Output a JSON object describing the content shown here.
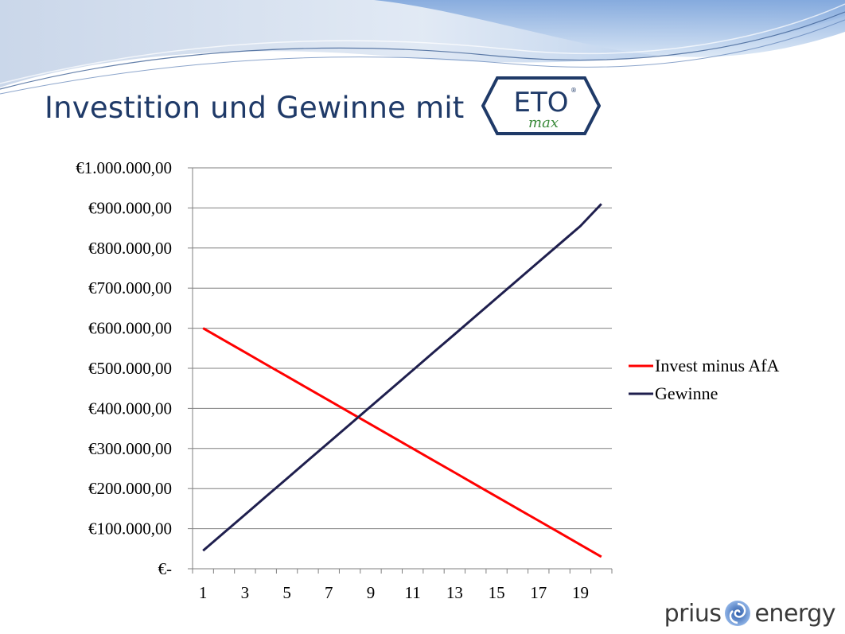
{
  "slide": {
    "title": "Investition und Gewinne mit",
    "logo": {
      "main_text": "ETO",
      "sub_text": "max",
      "registered": "®"
    },
    "brand": {
      "left": "prius",
      "right": "energy"
    }
  },
  "colors": {
    "title": "#1f3a68",
    "series_invest": "#ff0000",
    "series_gewinne": "#1f1f4e",
    "grid": "#7f7f7f",
    "logo_green": "#3a8a3a"
  },
  "chart_data": {
    "type": "line",
    "x": [
      1,
      2,
      3,
      4,
      5,
      6,
      7,
      8,
      9,
      10,
      11,
      12,
      13,
      14,
      15,
      16,
      17,
      18,
      19,
      20
    ],
    "xticks": [
      "1",
      "3",
      "5",
      "7",
      "9",
      "11",
      "13",
      "15",
      "17",
      "19"
    ],
    "yticks": [
      "€-",
      "€100.000,00",
      "€200.000,00",
      "€300.000,00",
      "€400.000,00",
      "€500.000,00",
      "€600.000,00",
      "€700.000,00",
      "€800.000,00",
      "€900.000,00",
      "€1.000.000,00"
    ],
    "ylim": [
      0,
      1000000
    ],
    "grid": true,
    "legend_position": "right",
    "series": [
      {
        "name": "Invest minus AfA",
        "color": "#ff0000",
        "values": [
          600000,
          570000,
          540000,
          510000,
          480000,
          450000,
          420000,
          390000,
          360000,
          330000,
          300000,
          270000,
          240000,
          210000,
          180000,
          150000,
          120000,
          90000,
          60000,
          30000
        ]
      },
      {
        "name": "Gewinne",
        "color": "#1f1f4e",
        "values": [
          45000,
          90000,
          135000,
          180000,
          225000,
          270000,
          315000,
          360000,
          405000,
          450000,
          495000,
          540000,
          585000,
          630000,
          675000,
          720000,
          765000,
          810000,
          855000,
          910000
        ]
      }
    ]
  }
}
